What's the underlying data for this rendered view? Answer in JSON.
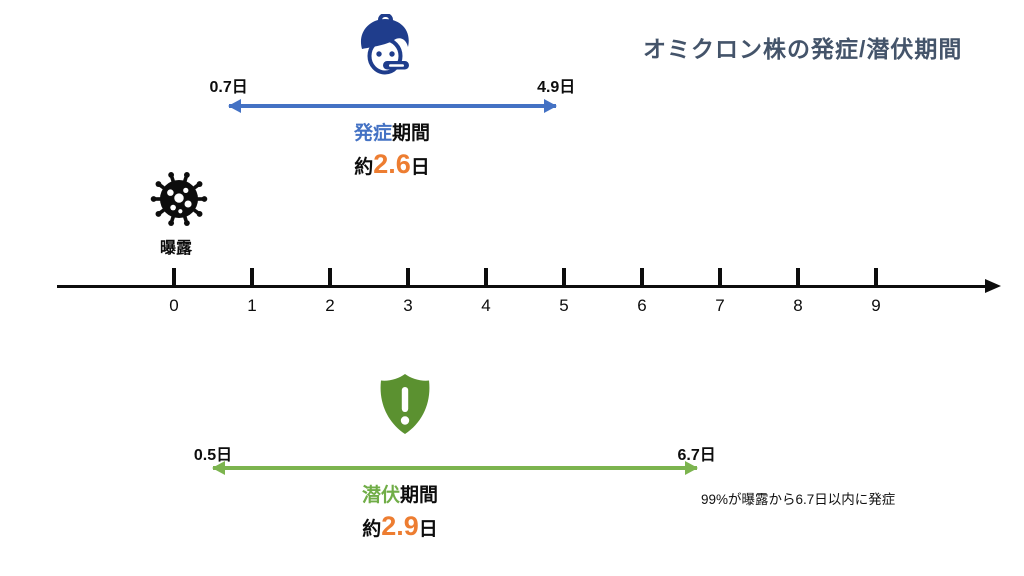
{
  "title": "オミクロン株の発症/潜伏期間",
  "colors": {
    "title": "#44546A",
    "onset_blue": "#4472C4",
    "person_navy": "#1F3D8C",
    "incubation_green": "#70AD47",
    "incubation_arrow_green": "#7CB44F",
    "shield_green": "#5B9130",
    "value_orange": "#ED7D31",
    "axis_black": "#0d0d0d"
  },
  "exposure": {
    "label": "曝露"
  },
  "timeline": {
    "ticks": [
      "0",
      "1",
      "2",
      "3",
      "4",
      "5",
      "6",
      "7",
      "8",
      "9"
    ]
  },
  "onset": {
    "start_day": 0.7,
    "end_day": 4.9,
    "start_label": "0.7日",
    "end_label": "4.9日",
    "name_highlight": "発症",
    "name_rest": "期間",
    "approx_prefix": "約",
    "approx_value": "2.6",
    "approx_suffix": "日"
  },
  "incubation": {
    "start_day": 0.5,
    "end_day": 6.7,
    "start_label": "0.5日",
    "end_label": "6.7日",
    "name_highlight": "潜伏",
    "name_rest": "期間",
    "approx_prefix": "約",
    "approx_value": "2.9",
    "approx_suffix": "日",
    "note": "99%が曝露から6.7日以内に発症"
  },
  "icons": {
    "sick_person": "sick-person-icon",
    "virus": "virus-exposure-icon",
    "shield": "shield-exclamation-icon"
  }
}
